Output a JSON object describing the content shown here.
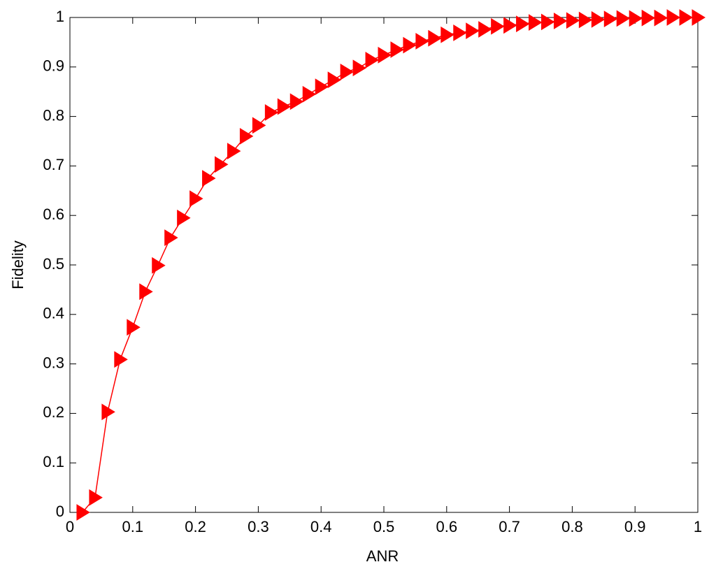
{
  "chart_data": {
    "type": "line",
    "xlabel": "ANR",
    "ylabel": "Fidelity",
    "x": [
      0.02,
      0.04,
      0.06,
      0.08,
      0.1,
      0.12,
      0.14,
      0.16,
      0.18,
      0.2,
      0.22,
      0.24,
      0.26,
      0.28,
      0.3,
      0.32,
      0.34,
      0.36,
      0.38,
      0.4,
      0.42,
      0.44,
      0.46,
      0.48,
      0.5,
      0.52,
      0.54,
      0.56,
      0.58,
      0.6,
      0.62,
      0.64,
      0.66,
      0.68,
      0.7,
      0.72,
      0.74,
      0.76,
      0.78,
      0.8,
      0.82,
      0.84,
      0.86,
      0.88,
      0.9,
      0.92,
      0.94,
      0.96,
      0.98,
      1.0
    ],
    "values": [
      0,
      0.03,
      0.203,
      0.309,
      0.374,
      0.446,
      0.499,
      0.555,
      0.595,
      0.634,
      0.675,
      0.703,
      0.73,
      0.76,
      0.782,
      0.808,
      0.82,
      0.83,
      0.845,
      0.86,
      0.874,
      0.89,
      0.898,
      0.914,
      0.924,
      0.935,
      0.944,
      0.952,
      0.958,
      0.965,
      0.969,
      0.973,
      0.976,
      0.982,
      0.984,
      0.987,
      0.99,
      0.991,
      0.993,
      0.994,
      0.995,
      0.996,
      0.997,
      0.998,
      0.998,
      0.999,
      0.999,
      1,
      1,
      1
    ],
    "color": "#ff0000",
    "marker": "triangle-right",
    "xlim": [
      0,
      1
    ],
    "ylim": [
      0,
      1
    ],
    "xticks": [
      0,
      0.1,
      0.2,
      0.3,
      0.4,
      0.5,
      0.6,
      0.7,
      0.8,
      0.9,
      1
    ],
    "yticks": [
      0,
      0.1,
      0.2,
      0.3,
      0.4,
      0.5,
      0.6,
      0.7,
      0.8,
      0.9,
      1
    ],
    "grid": false
  }
}
